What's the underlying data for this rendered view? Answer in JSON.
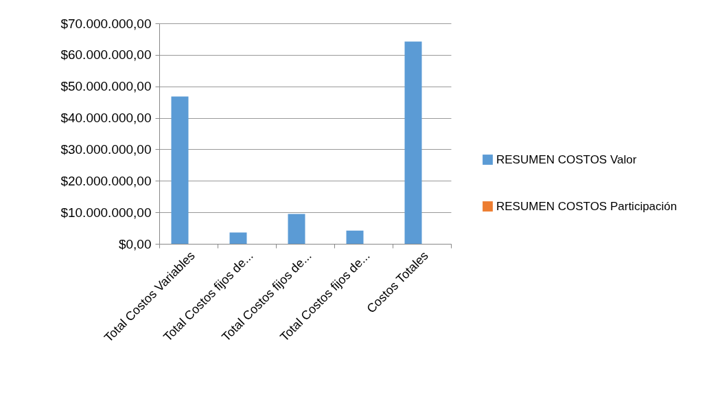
{
  "chart_data": {
    "type": "bar",
    "categories": [
      "Total Costos Variables",
      "Total Costos fijos de...",
      "Total Costos fijos de...",
      "Total Costos fijos de...",
      "Costos Totales"
    ],
    "series": [
      {
        "name": "RESUMEN COSTOS Valor",
        "color": "#5b9bd5",
        "values": [
          46800000,
          3600000,
          9500000,
          4200000,
          64200000
        ]
      },
      {
        "name": "RESUMEN COSTOS Participación",
        "color": "#ed7d31",
        "values": [
          0,
          0,
          0,
          0,
          0
        ]
      }
    ],
    "ylim": [
      0,
      70000000
    ],
    "yticks": [
      {
        "value": 0,
        "label": "$0,00"
      },
      {
        "value": 10000000,
        "label": "$10.000.000,00"
      },
      {
        "value": 20000000,
        "label": "$20.000.000,00"
      },
      {
        "value": 30000000,
        "label": "$30.000.000,00"
      },
      {
        "value": 40000000,
        "label": "$40.000.000,00"
      },
      {
        "value": 50000000,
        "label": "$50.000.000,00"
      },
      {
        "value": 60000000,
        "label": "$60.000.000,00"
      },
      {
        "value": 70000000,
        "label": "$70.000.000,00"
      }
    ],
    "grid": "y",
    "legend": "right"
  }
}
